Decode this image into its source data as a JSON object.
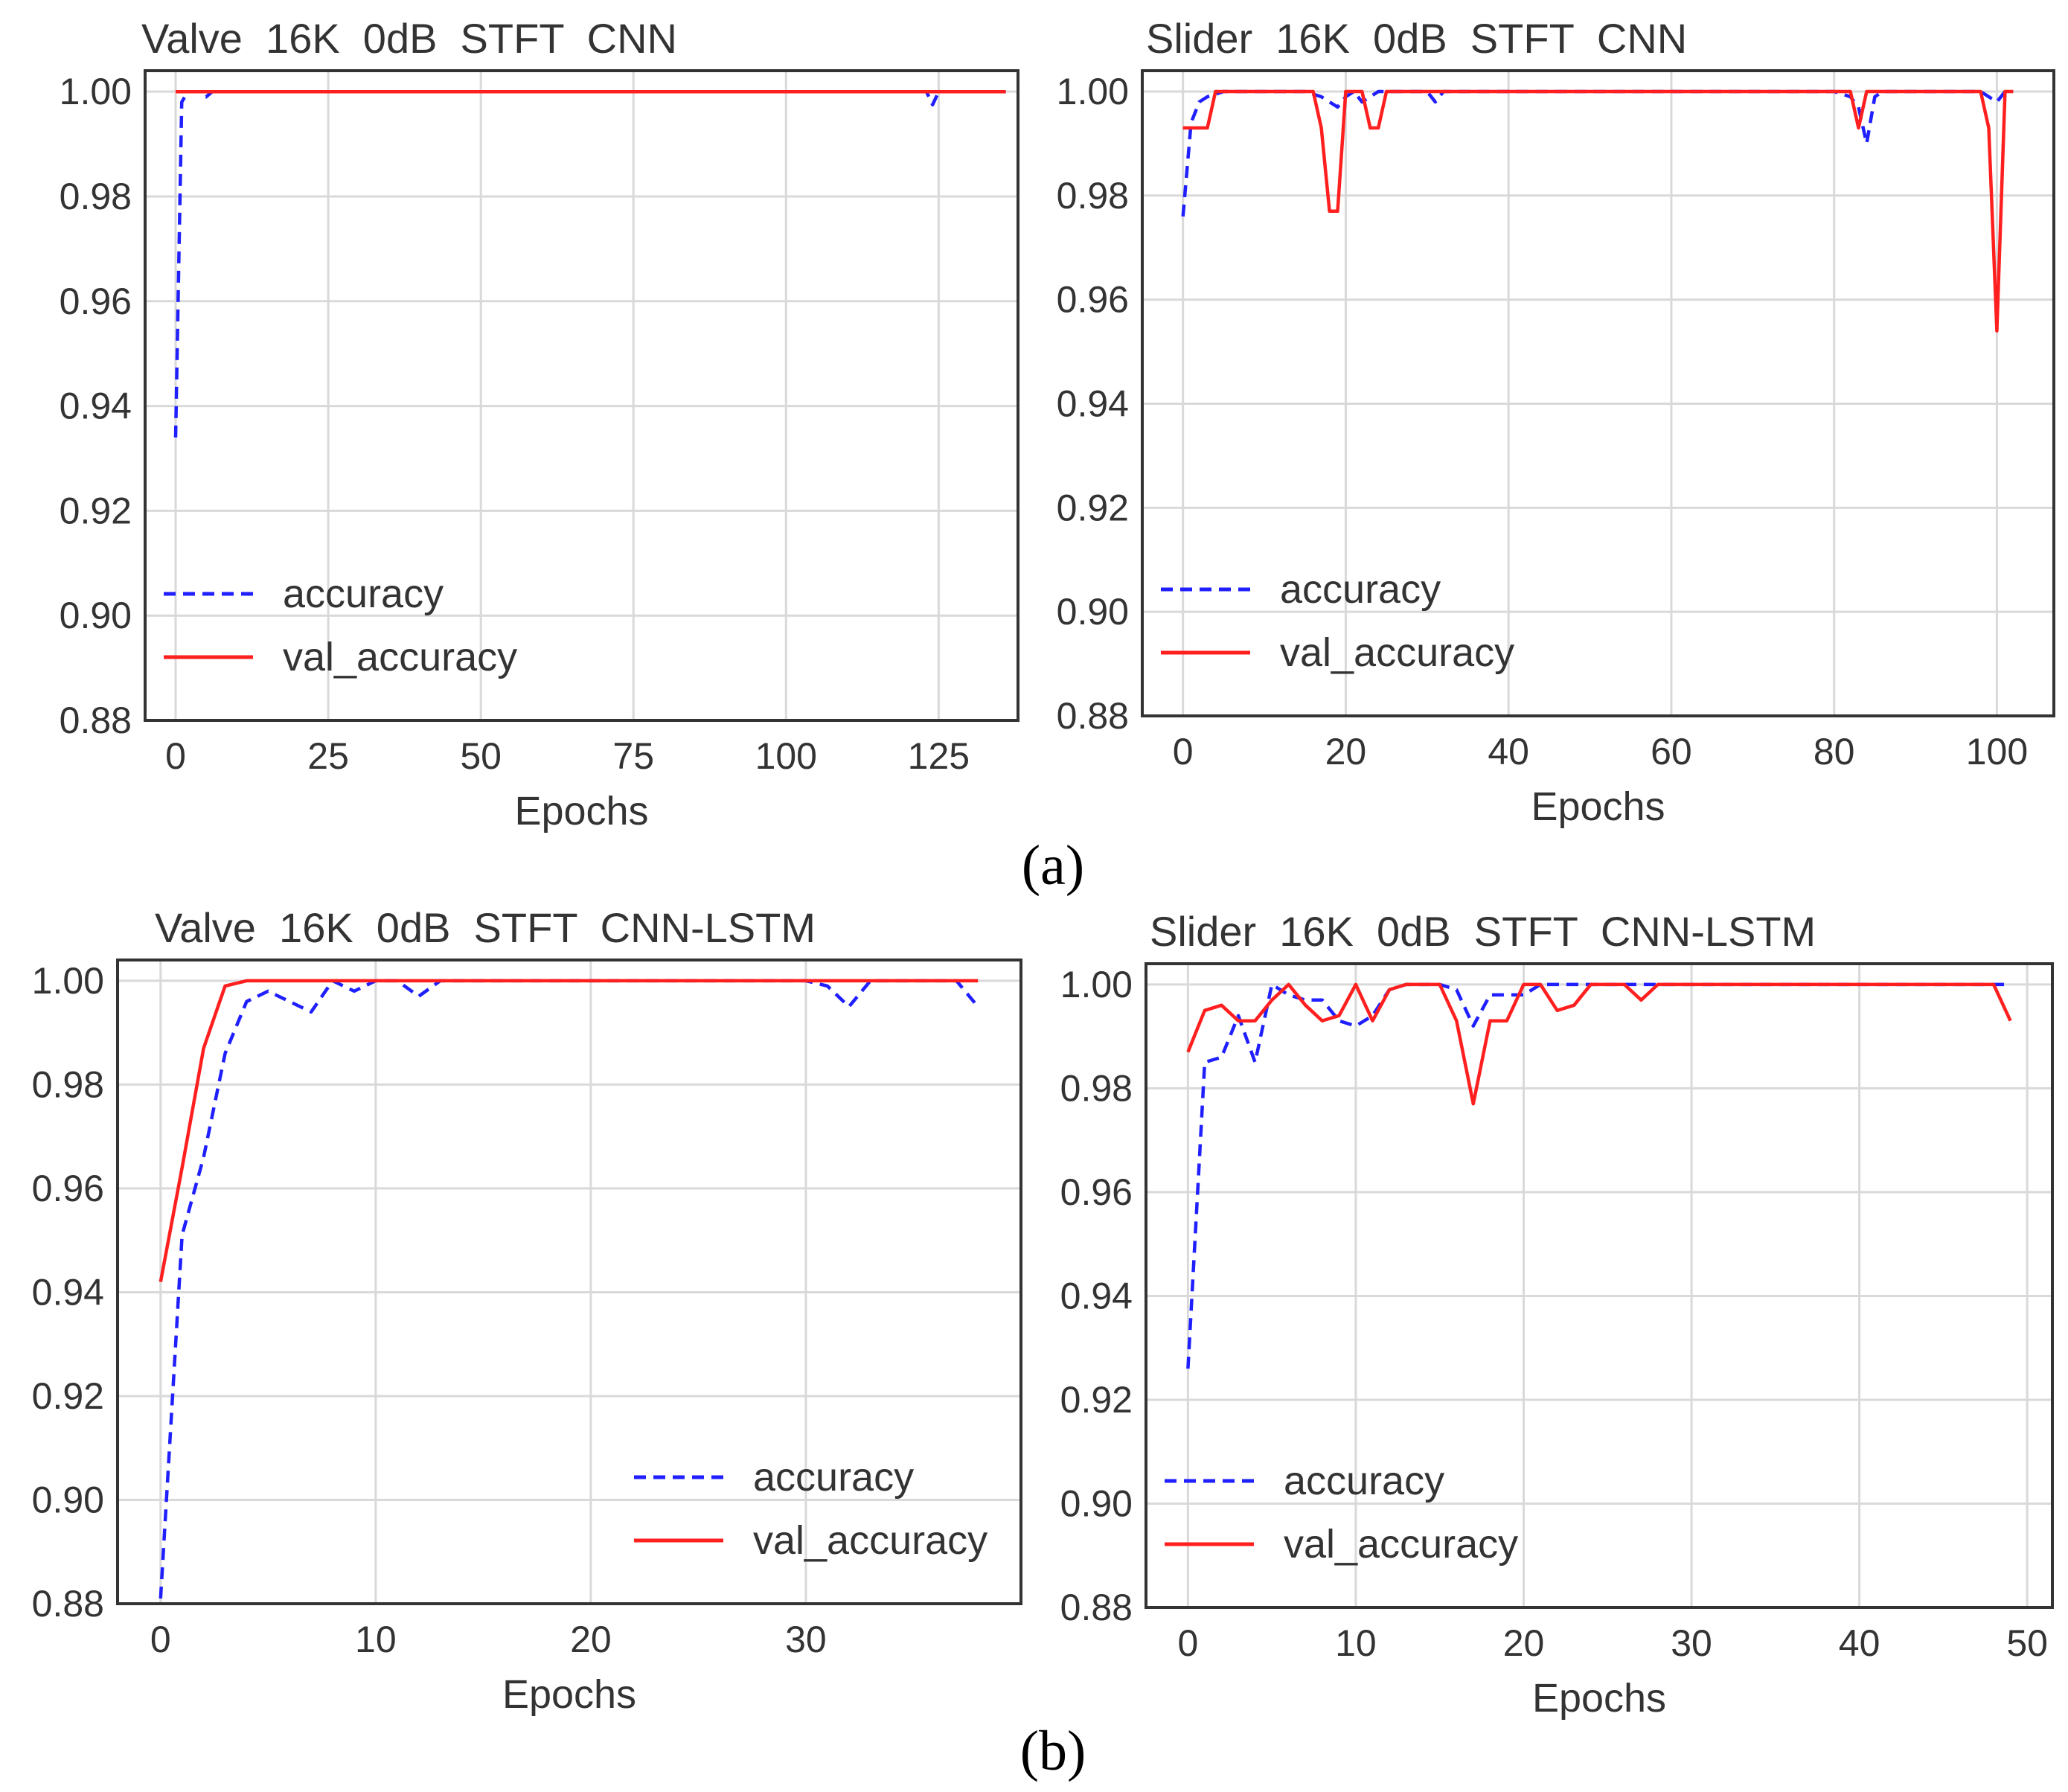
{
  "figure": {
    "panel_labels": [
      {
        "id": "a",
        "text": "(a)"
      },
      {
        "id": "b",
        "text": "(b)"
      }
    ],
    "colors": {
      "accuracy": "#1f1fff",
      "val_accuracy": "#ff1f1f",
      "grid": "#d9d9d9",
      "frame": "#333333",
      "text": "#333333"
    }
  },
  "chart_data": [
    {
      "id": "valve-cnn",
      "type": "line",
      "title": "Valve  16K  0dB  STFT  CNN",
      "xlabel": "Epochs",
      "ylabel": "",
      "xlim": [
        -5,
        138
      ],
      "ylim": [
        0.88,
        1.004
      ],
      "xticks": [
        0,
        25,
        50,
        75,
        100,
        125
      ],
      "xtick_labels": [
        "0",
        "25",
        "50",
        "75",
        "100",
        "125"
      ],
      "yticks": [
        0.88,
        0.9,
        0.92,
        0.94,
        0.96,
        0.98,
        1.0
      ],
      "ytick_labels": [
        "0.88",
        "0.90",
        "0.92",
        "0.94",
        "0.96",
        "0.98",
        "1.00"
      ],
      "legend": {
        "position": "lower-left",
        "entries": [
          "accuracy",
          "val_accuracy"
        ]
      },
      "series": [
        {
          "name": "accuracy",
          "style": "dashed",
          "x": [
            0,
            1,
            2,
            3,
            4,
            5,
            6,
            10,
            20,
            50,
            100,
            122,
            123,
            124,
            125,
            130,
            136
          ],
          "y": [
            0.934,
            0.998,
            1.0,
            1.0,
            1.0,
            0.999,
            1.0,
            1.0,
            1.0,
            1.0,
            1.0,
            1.0,
            1.0,
            0.9975,
            1.0,
            1.0,
            1.0
          ]
        },
        {
          "name": "val_accuracy",
          "style": "solid",
          "x": [
            0,
            1,
            50,
            100,
            136
          ],
          "y": [
            1.0,
            1.0,
            1.0,
            1.0,
            1.0
          ]
        }
      ]
    },
    {
      "id": "slider-cnn",
      "type": "line",
      "title": "Slider  16K  0dB  STFT  CNN",
      "xlabel": "Epochs",
      "ylabel": "",
      "xlim": [
        -5,
        107
      ],
      "ylim": [
        0.88,
        1.004
      ],
      "xticks": [
        0,
        20,
        40,
        60,
        80,
        100
      ],
      "xtick_labels": [
        "0",
        "20",
        "40",
        "60",
        "80",
        "100"
      ],
      "yticks": [
        0.88,
        0.9,
        0.92,
        0.94,
        0.96,
        0.98,
        1.0
      ],
      "ytick_labels": [
        "0.88",
        "0.90",
        "0.92",
        "0.94",
        "0.96",
        "0.98",
        "1.00"
      ],
      "legend": {
        "position": "lower-left",
        "entries": [
          "accuracy",
          "val_accuracy"
        ]
      },
      "series": [
        {
          "name": "accuracy",
          "style": "dashed",
          "x": [
            0,
            1,
            2,
            3,
            4,
            5,
            10,
            15,
            17,
            18,
            19,
            20,
            21,
            22,
            23,
            24,
            25,
            30,
            31,
            32,
            40,
            60,
            80,
            82,
            83,
            84,
            85,
            86,
            90,
            98,
            99,
            100,
            101,
            102
          ],
          "y": [
            0.976,
            0.994,
            0.998,
            0.999,
            0.9995,
            1.0,
            1.0,
            1.0,
            0.999,
            0.998,
            0.997,
            0.999,
            1.0,
            0.998,
            0.999,
            1.0,
            1.0,
            1.0,
            0.998,
            1.0,
            1.0,
            1.0,
            1.0,
            0.999,
            0.997,
            0.99,
            0.999,
            1.0,
            1.0,
            1.0,
            0.999,
            0.998,
            1.0,
            1.0
          ]
        },
        {
          "name": "val_accuracy",
          "style": "solid",
          "x": [
            0,
            1,
            2,
            3,
            4,
            5,
            10,
            15,
            16,
            17,
            18,
            19,
            20,
            21,
            22,
            23,
            24,
            25,
            30,
            40,
            60,
            80,
            82,
            83,
            84,
            85,
            90,
            98,
            99,
            100,
            101,
            102
          ],
          "y": [
            0.993,
            0.993,
            0.993,
            0.993,
            1.0,
            1.0,
            1.0,
            1.0,
            1.0,
            0.993,
            0.977,
            0.977,
            1.0,
            1.0,
            1.0,
            0.993,
            0.993,
            1.0,
            1.0,
            1.0,
            1.0,
            1.0,
            1.0,
            0.993,
            1.0,
            1.0,
            1.0,
            1.0,
            0.993,
            0.954,
            1.0,
            1.0
          ]
        }
      ]
    },
    {
      "id": "valve-cnn-lstm",
      "type": "line",
      "title": "Valve  16K  0dB  STFT  CNN-LSTM",
      "xlabel": "Epochs",
      "ylabel": "",
      "xlim": [
        -2,
        40
      ],
      "ylim": [
        0.88,
        1.004
      ],
      "xticks": [
        0,
        10,
        20,
        30
      ],
      "xtick_labels": [
        "0",
        "10",
        "20",
        "30"
      ],
      "yticks": [
        0.88,
        0.9,
        0.92,
        0.94,
        0.96,
        0.98,
        1.0
      ],
      "ytick_labels": [
        "0.88",
        "0.90",
        "0.92",
        "0.94",
        "0.96",
        "0.98",
        "1.00"
      ],
      "legend": {
        "position": "lower-right",
        "entries": [
          "accuracy",
          "val_accuracy"
        ]
      },
      "series": [
        {
          "name": "accuracy",
          "style": "dashed",
          "x": [
            0,
            1,
            2,
            3,
            4,
            5,
            6,
            7,
            8,
            9,
            10,
            11,
            12,
            13,
            14,
            20,
            30,
            31,
            32,
            33,
            34,
            35,
            36,
            37,
            38
          ],
          "y": [
            0.881,
            0.951,
            0.966,
            0.986,
            0.996,
            0.998,
            0.996,
            0.994,
            1.0,
            0.998,
            1.0,
            1.0,
            0.997,
            1.0,
            1.0,
            1.0,
            1.0,
            0.999,
            0.995,
            1.0,
            1.0,
            1.0,
            1.0,
            1.0,
            0.995
          ]
        },
        {
          "name": "val_accuracy",
          "style": "solid",
          "x": [
            0,
            1,
            2,
            3,
            4,
            5,
            10,
            20,
            30,
            38
          ],
          "y": [
            0.942,
            0.964,
            0.987,
            0.999,
            1.0,
            1.0,
            1.0,
            1.0,
            1.0,
            1.0
          ]
        }
      ]
    },
    {
      "id": "slider-cnn-lstm",
      "type": "line",
      "title": "Slider  16K  0dB  STFT  CNN-LSTM",
      "xlabel": "Epochs",
      "ylabel": "",
      "xlim": [
        -2.5,
        51.5
      ],
      "ylim": [
        0.88,
        1.004
      ],
      "xticks": [
        0,
        10,
        20,
        30,
        40,
        50
      ],
      "xtick_labels": [
        "0",
        "10",
        "20",
        "30",
        "40",
        "50"
      ],
      "yticks": [
        0.88,
        0.9,
        0.92,
        0.94,
        0.96,
        0.98,
        1.0
      ],
      "ytick_labels": [
        "0.88",
        "0.90",
        "0.92",
        "0.94",
        "0.96",
        "0.98",
        "1.00"
      ],
      "legend": {
        "position": "lower-left",
        "entries": [
          "accuracy",
          "val_accuracy"
        ]
      },
      "series": [
        {
          "name": "accuracy",
          "style": "dashed",
          "x": [
            0,
            1,
            2,
            3,
            4,
            5,
            6,
            7,
            8,
            9,
            10,
            11,
            12,
            13,
            14,
            15,
            16,
            17,
            18,
            19,
            20,
            21,
            25,
            30,
            40,
            49
          ],
          "y": [
            0.926,
            0.985,
            0.986,
            0.994,
            0.985,
            1.0,
            0.998,
            0.997,
            0.997,
            0.993,
            0.992,
            0.994,
            0.999,
            1.0,
            1.0,
            1.0,
            0.999,
            0.992,
            0.998,
            0.998,
            0.998,
            1.0,
            1.0,
            1.0,
            1.0,
            1.0
          ]
        },
        {
          "name": "val_accuracy",
          "style": "solid",
          "x": [
            0,
            1,
            2,
            3,
            4,
            5,
            6,
            7,
            8,
            9,
            10,
            11,
            12,
            13,
            14,
            15,
            16,
            17,
            18,
            19,
            20,
            21,
            22,
            23,
            24,
            25,
            26,
            27,
            28,
            29,
            30,
            40,
            48,
            49
          ],
          "y": [
            0.987,
            0.995,
            0.996,
            0.993,
            0.993,
            0.997,
            1.0,
            0.996,
            0.993,
            0.994,
            1.0,
            0.993,
            0.999,
            1.0,
            1.0,
            1.0,
            0.993,
            0.977,
            0.993,
            0.993,
            1.0,
            1.0,
            0.995,
            0.996,
            1.0,
            1.0,
            1.0,
            0.997,
            1.0,
            1.0,
            1.0,
            1.0,
            1.0,
            0.993
          ]
        }
      ]
    }
  ]
}
